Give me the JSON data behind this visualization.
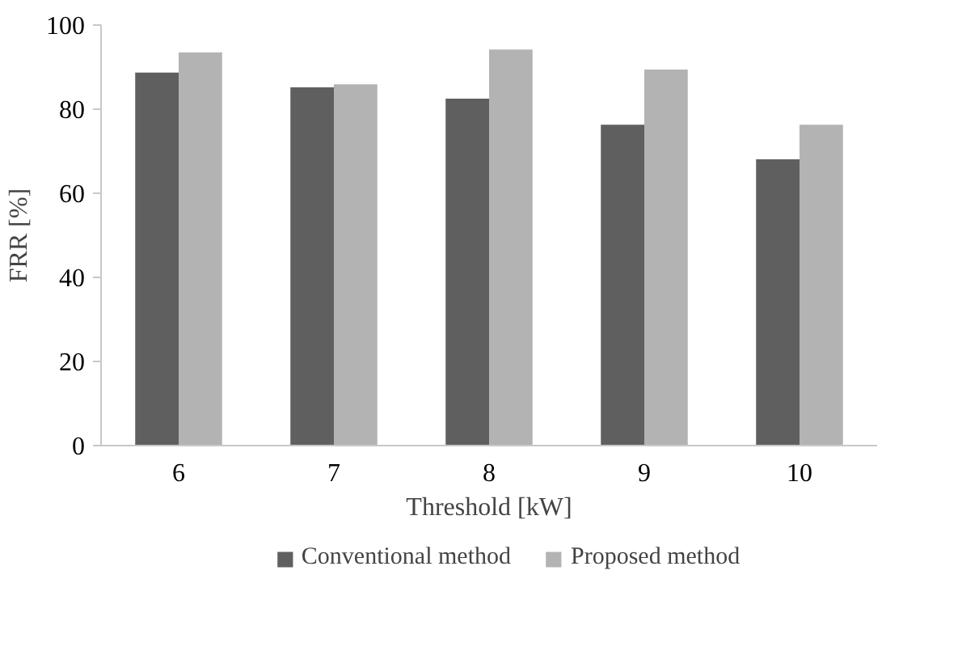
{
  "chart_data": {
    "type": "bar",
    "xlabel": "Threshold [kW]",
    "ylabel": "FRR [%]",
    "categories": [
      "6",
      "7",
      "8",
      "9",
      "10"
    ],
    "series": [
      {
        "name": "Conventional method",
        "color": "#5f5f5f",
        "values": [
          88.7,
          85.2,
          82.5,
          76.3,
          68.1
        ]
      },
      {
        "name": "Proposed method",
        "color": "#b3b3b3",
        "values": [
          93.5,
          85.9,
          94.2,
          89.4,
          76.3
        ]
      }
    ],
    "ylim": [
      0,
      100
    ],
    "yticks": [
      0,
      20,
      40,
      60,
      80,
      100
    ],
    "grid": false,
    "legend": "bottom"
  }
}
